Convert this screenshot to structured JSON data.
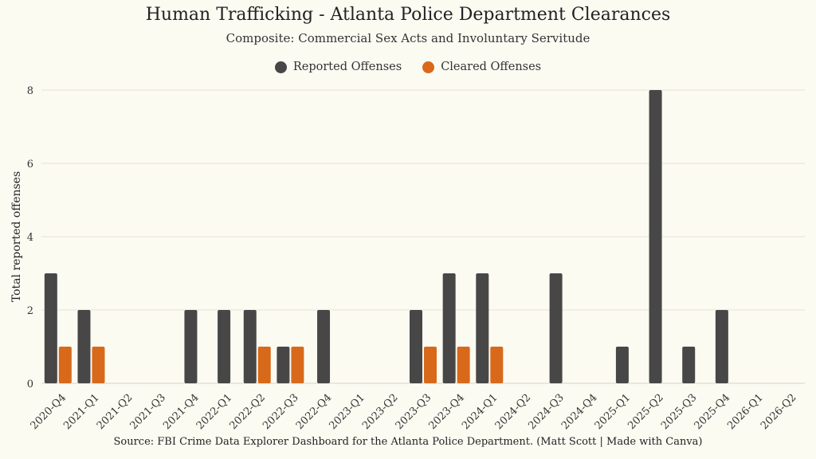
{
  "chart_data": {
    "type": "bar",
    "title": "Human Trafficking - Atlanta Police Department Clearances",
    "subtitle": "Composite: Commercial Sex Acts and Involuntary Servitude",
    "ylabel": "Total reported offenses",
    "xlabel": "",
    "ylim": [
      0,
      8
    ],
    "yticks": [
      0,
      2,
      4,
      6,
      8
    ],
    "grid": true,
    "legend_position": "top-center",
    "categories": [
      "2020-Q4",
      "2021-Q1",
      "2021-Q2",
      "2021-Q3",
      "2021-Q4",
      "2022-Q1",
      "2022-Q2",
      "2022-Q3",
      "2022-Q4",
      "2023-Q1",
      "2023-Q2",
      "2023-Q3",
      "2023-Q4",
      "2024-Q1",
      "2024-Q2",
      "2024-Q3",
      "2024-Q4",
      "2025-Q1",
      "2025-Q2",
      "2025-Q3",
      "2025-Q4",
      "2026-Q1",
      "2026-Q2"
    ],
    "series": [
      {
        "name": "Reported Offenses",
        "color": "#474747",
        "values": [
          3,
          2,
          0,
          0,
          2,
          2,
          2,
          1,
          2,
          0,
          0,
          2,
          3,
          3,
          0,
          3,
          0,
          1,
          8,
          1,
          2,
          0,
          0
        ]
      },
      {
        "name": "Cleared Offenses",
        "color": "#d9691a",
        "values": [
          1,
          1,
          0,
          0,
          0,
          0,
          1,
          1,
          0,
          0,
          0,
          1,
          1,
          1,
          0,
          0,
          0,
          0,
          0,
          0,
          0,
          0,
          0
        ]
      }
    ],
    "source": "Source: FBI Crime Data Explorer Dashboard for the Atlanta Police Department. (Matt Scott | Made with Canva)"
  }
}
